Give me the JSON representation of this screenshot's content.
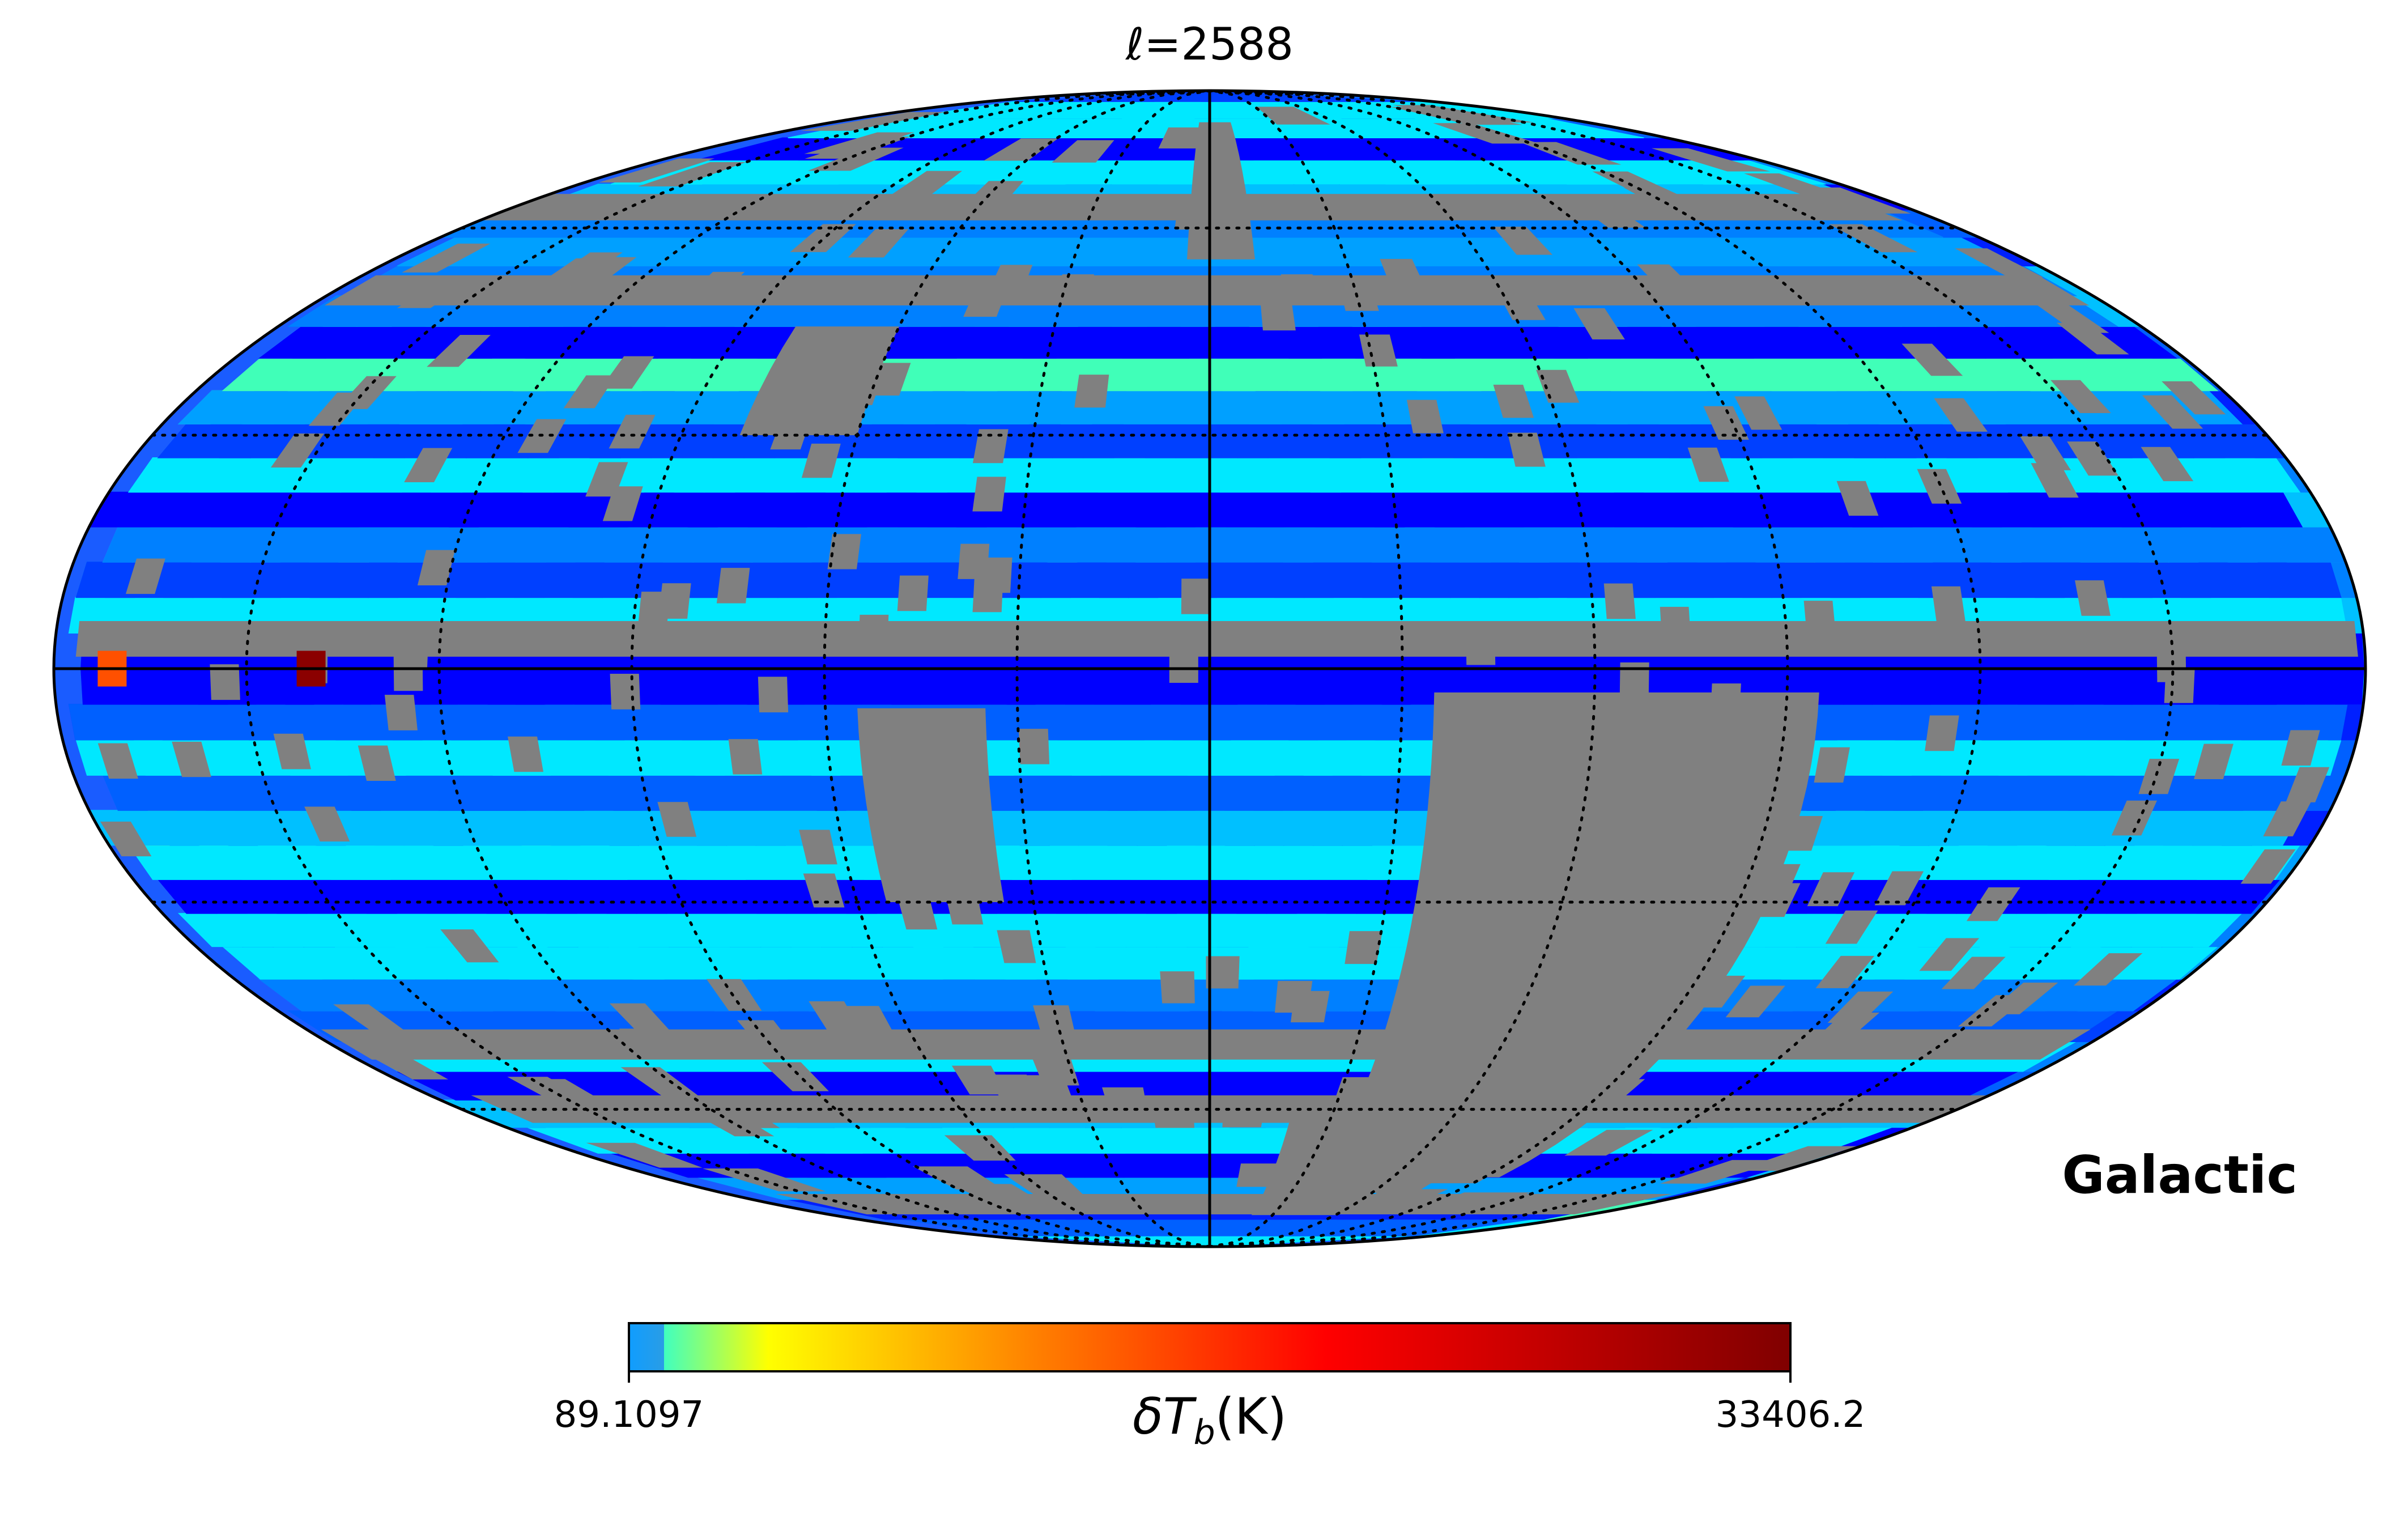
{
  "map": {
    "title_prefix": "ℓ",
    "title_eq": "=2588",
    "projection": "mollweide",
    "coordinate_system": "Galactic",
    "graticule": {
      "visible": true,
      "style": "dotted",
      "meridian_step_deg": 30,
      "parallel_step_deg": 30
    },
    "missing_pixel_color": "#808080",
    "pixel_palette": [
      "#0000ff",
      "#0020ff",
      "#0040ff",
      "#0060ff",
      "#0080ff",
      "#00a0ff",
      "#00c0ff",
      "#00e8ff",
      "#40ffb8",
      "#a0ff58"
    ],
    "hot_pixels": [
      {
        "lon_deg": 140,
        "lat_deg": 0,
        "color": "#8b0000"
      },
      {
        "lon_deg": 171,
        "lat_deg": 0,
        "color": "#ff5000"
      }
    ]
  },
  "colorbar": {
    "min_label": "89.1097",
    "max_label": "33406.2",
    "label_prefix": "δT",
    "label_sub": "b",
    "label_suffix": "(K)",
    "colormap": "jet",
    "stops": [
      "#00ffff",
      "#ffff00",
      "#ff8000",
      "#ff0000",
      "#800000"
    ]
  }
}
